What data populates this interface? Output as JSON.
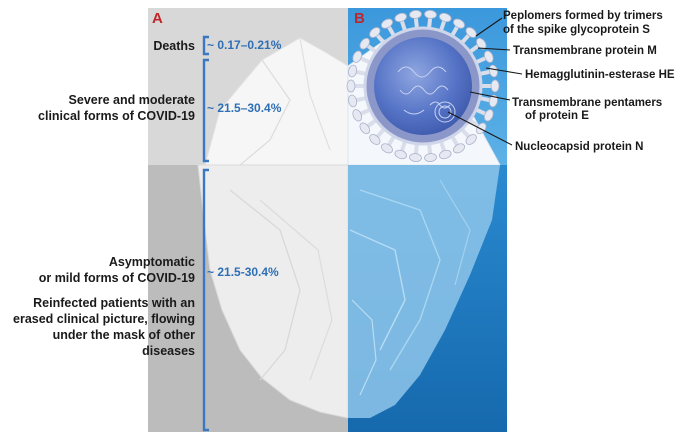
{
  "panels": {
    "a_letter": "A",
    "b_letter": "B"
  },
  "left_labels": {
    "deaths": "Deaths",
    "severe_line1": "Severe and moderate",
    "severe_line2": "clinical forms of COVID-19",
    "asymptomatic_line1": "Asymptomatic",
    "asymptomatic_line2": "or mild forms of COVID-19",
    "reinfected_line1": "Reinfected patients with an",
    "reinfected_line2": "erased clinical picture, flowing",
    "reinfected_line3": "under the mask of other",
    "reinfected_line4": "diseases"
  },
  "values": {
    "deaths": "~ 0.17–0.21%",
    "severe": "~ 21.5–30.4%",
    "asymptomatic": "~ 21.5-30.4%"
  },
  "virus_labels": {
    "peplomers_line1": "Peplomers formed by trimers",
    "peplomers_line2": "of the spike glycoprotein S",
    "membrane_m": "Transmembrane protein M",
    "he": "Hemagglutinin-esterase HE",
    "pentamers_line1": "Transmembrane pentamers",
    "pentamers_line2": "of protein E",
    "nucleocapsid": "Nucleocapsid protein N"
  },
  "colors": {
    "panel_a_top": "#d6d6d6",
    "panel_a_bottom": "#b9b9b9",
    "panel_b_sky": "#4aa3df",
    "panel_b_water": "#1f7fc4",
    "iceberg": "#f4f4f4",
    "bracket": "#3a78c2",
    "value_text": "#2e6fb5",
    "panel_letter": "#c0262a",
    "virus_body": "#4f6fc4",
    "virus_spike": "#dfe4ee"
  }
}
